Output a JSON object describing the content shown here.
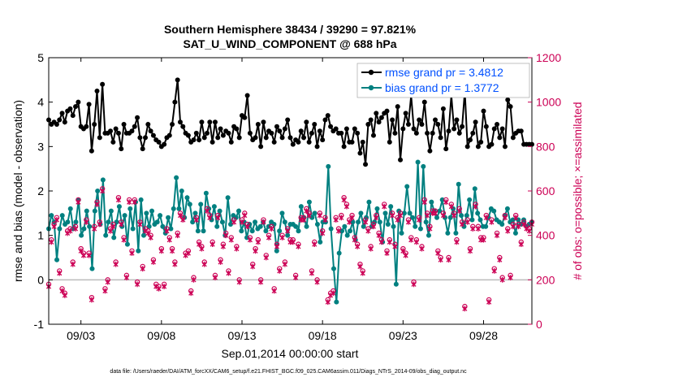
{
  "chart_data": {
    "type": "line",
    "title_line1": "Southern Hemisphere 38434 / 39290 = 97.821%",
    "title_line2": "SAT_U_WIND_COMPONENT @ 688 hPa",
    "ylabel_left": "rmse and bias (model - observation)",
    "ylabel_right": "# of obs: o=possible; ×=assimilated",
    "xlabel": "Sep.01,2014 00:00:00 start",
    "footer": "data file: /Users/raeder/DAI/ATM_forcXX/CAM6_setup/f.e21.FHIST_BGC.f09_025.CAM6assim.011/Diags_NTrS_2014-09/obs_diag_output.nc",
    "x_range": [
      1,
      31
    ],
    "ylim_left": [
      -1,
      5
    ],
    "ylim_right": [
      0,
      1200
    ],
    "x_ticks": [
      {
        "label": "09/03",
        "value": 3
      },
      {
        "label": "09/08",
        "value": 8
      },
      {
        "label": "09/13",
        "value": 13
      },
      {
        "label": "09/18",
        "value": 18
      },
      {
        "label": "09/23",
        "value": 23
      },
      {
        "label": "09/28",
        "value": 28
      }
    ],
    "y_ticks_left": [
      "-1",
      "0",
      "1",
      "2",
      "3",
      "4",
      "5"
    ],
    "y_ticks_right": [
      "0",
      "200",
      "400",
      "600",
      "800",
      "1000",
      "1200"
    ],
    "legend": [
      {
        "label": "rmse grand pr = 3.4812",
        "color": "#000000"
      },
      {
        "label": "bias grand pr = 1.3772",
        "color": "#008080"
      }
    ],
    "colors": {
      "rmse": "#000000",
      "bias": "#008080",
      "obs": "#cc0055",
      "zero": "#bbbbbb",
      "legend_text": "#0050ff"
    },
    "series": [
      {
        "name": "rmse",
        "axis": "left",
        "values": [
          3.6,
          3.5,
          3.55,
          3.5,
          3.6,
          3.75,
          3.55,
          3.8,
          3.85,
          3.7,
          3.9,
          4.0,
          3.45,
          3.4,
          3.45,
          3.95,
          2.9,
          3.5,
          4.25,
          3.2,
          4.4,
          3.3,
          3.3,
          3.35,
          3.1,
          3.4,
          3.3,
          2.95,
          3.5,
          3.3,
          3.3,
          3.35,
          3.45,
          3.65,
          3.2,
          2.95,
          3.2,
          3.5,
          3.35,
          3.25,
          3.15,
          3.1,
          3.0,
          3.05,
          3.2,
          3.25,
          3.5,
          4.0,
          4.5,
          3.55,
          3.45,
          3.3,
          3.25,
          3.1,
          3.15,
          3.3,
          3.15,
          3.55,
          3.2,
          3.3,
          3.55,
          3.1,
          3.55,
          3.2,
          3.4,
          3.25,
          3.35,
          3.3,
          3.1,
          3.45,
          3.4,
          3.2,
          3.7,
          3.65,
          4.15,
          3.3,
          3.15,
          3.2,
          3.5,
          3.0,
          3.55,
          3.2,
          3.35,
          3.3,
          3.1,
          3.45,
          3.35,
          3.2,
          3.4,
          3.6,
          3.2,
          3.05,
          3.15,
          3.1,
          3.35,
          3.2,
          3.55,
          3.1,
          3.3,
          3.5,
          3.0,
          3.35,
          3.15,
          3.6,
          3.7,
          3.45,
          3.35,
          3.4,
          3.3,
          3.3,
          3.0,
          3.4,
          3.1,
          3.1,
          3.4,
          3.3,
          2.85,
          3.1,
          2.6,
          3.5,
          3.6,
          3.25,
          3.75,
          3.55,
          3.65,
          3.75,
          3.8,
          3.1,
          3.6,
          3.3,
          3.9,
          2.7,
          3.4,
          3.75,
          3.5,
          4.15,
          3.4,
          3.3,
          3.6,
          3.5,
          4.0,
          3.3,
          2.9,
          3.3,
          3.6,
          3.5,
          3.2,
          3.85,
          2.95,
          3.35,
          4.15,
          3.4,
          3.6,
          3.3,
          3.45,
          4.25,
          3.0,
          3.15,
          3.3,
          3.55,
          3.0,
          3.1,
          3.8,
          3.45,
          3.0,
          3.05,
          3.4,
          3.5,
          3.2,
          3.4,
          3.0,
          4.05,
          3.9,
          3.2,
          3.3,
          3.35,
          3.35,
          3.05,
          3.05,
          3.05,
          3.05
        ]
      },
      {
        "name": "bias",
        "axis": "left",
        "values": [
          1.15,
          1.45,
          1.3,
          0.45,
          1.15,
          1.45,
          1.25,
          1.3,
          1.6,
          1.15,
          1.3,
          1.8,
          1.0,
          1.15,
          1.55,
          1.2,
          0.25,
          1.55,
          2.0,
          1.25,
          2.25,
          1.0,
          1.3,
          1.55,
          0.95,
          1.3,
          1.65,
          1.2,
          1.45,
          0.8,
          1.6,
          1.15,
          1.75,
          0.65,
          1.8,
          1.0,
          1.5,
          1.2,
          1.55,
          1.25,
          1.3,
          1.45,
          1.2,
          1.05,
          1.4,
          1.15,
          1.6,
          2.3,
          1.6,
          2.0,
          1.4,
          1.85,
          1.7,
          1.3,
          1.5,
          1.1,
          1.7,
          1.1,
          1.95,
          1.6,
          1.35,
          1.65,
          1.2,
          1.55,
          1.3,
          1.0,
          1.85,
          1.25,
          1.45,
          1.4,
          1.55,
          1.1,
          1.3,
          0.95,
          1.25,
          1.1,
          1.3,
          1.15,
          1.2,
          1.3,
          1.1,
          1.2,
          1.3,
          1.25,
          0.65,
          1.1,
          1.5,
          1.3,
          1.0,
          1.25,
          1.25,
          1.2,
          1.1,
          1.65,
          1.4,
          1.2,
          1.75,
          1.4,
          1.5,
          1.25,
          0.85,
          1.3,
          1.3,
          2.55,
          1.15,
          0.25,
          -0.5,
          0.6,
          1.1,
          1.2,
          1.0,
          1.1,
          1.3,
          0.9,
          1.3,
          1.5,
          1.2,
          1.4,
          1.75,
          1.2,
          1.3,
          1.6,
          1.3,
          0.85,
          1.5,
          1.25,
          1.65,
          1.2,
          -0.1,
          1.55,
          1.05,
          1.5,
          2.1,
          1.5,
          1.4,
          1.2,
          2.65,
          1.15,
          2.55,
          1.3,
          1.0,
          1.75,
          1.55,
          1.4,
          1.55,
          1.8,
          1.4,
          1.05,
          1.4,
          1.6,
          1.05,
          2.15,
          1.45,
          1.2,
          1.45,
          1.8,
          1.35,
          2.05,
          1.5,
          1.35,
          1.2,
          1.2,
          1.4,
          1.6,
          1.55,
          1.35,
          1.3,
          1.25,
          1.45,
          1.6,
          1.3,
          1.35,
          1.05,
          1.35,
          1.25,
          1.35,
          1.2,
          1.25,
          1.3
        ]
      },
      {
        "name": "obs possible",
        "axis": "right",
        "values": [
          180,
          380,
          450,
          480,
          240,
          160,
          140,
          420,
          430,
          280,
          440,
          560,
          340,
          320,
          470,
          320,
          120,
          440,
          550,
          460,
          610,
          160,
          200,
          430,
          450,
          280,
          570,
          460,
          390,
          220,
          560,
          330,
          560,
          190,
          460,
          260,
          430,
          420,
          400,
          290,
          180,
          170,
          340,
          180,
          430,
          390,
          340,
          280,
          410,
          500,
          480,
          320,
          330,
          150,
          210,
          480,
          370,
          350,
          280,
          520,
          490,
          370,
          220,
          490,
          290,
          360,
          410,
          240,
          390,
          470,
          350,
          200,
          470,
          500,
          450,
          390,
          270,
          340,
          380,
          200,
          470,
          310,
          400,
          440,
          160,
          360,
          250,
          400,
          280,
          430,
          380,
          380,
          220,
          360,
          480,
          480,
          520,
          500,
          240,
          370,
          200,
          500,
          420,
          480,
          110,
          140,
          150,
          480,
          430,
          490,
          570,
          540,
          470,
          490,
          390,
          360,
          270,
          240,
          470,
          430,
          350,
          450,
          490,
          410,
          380,
          540,
          330,
          380,
          500,
          360,
          480,
          500,
          340,
          320,
          470,
          390,
          190,
          380,
          480,
          350,
          560,
          500,
          440,
          510,
          510,
          330,
          300,
          500,
          560,
          300,
          540,
          500,
          380,
          520,
          460,
          80,
          470,
          340,
          440,
          540,
          440,
          390,
          390,
          490,
          110,
          470,
          250,
          410,
          300,
          210,
          490,
          430,
          220,
          450,
          490,
          450,
          370,
          460,
          440,
          430,
          460
        ]
      },
      {
        "name": "obs assimilated",
        "axis": "right",
        "values": [
          170,
          370,
          440,
          470,
          230,
          150,
          130,
          410,
          420,
          270,
          430,
          550,
          330,
          310,
          460,
          310,
          110,
          430,
          540,
          450,
          600,
          150,
          190,
          420,
          440,
          270,
          560,
          450,
          380,
          210,
          550,
          320,
          550,
          180,
          450,
          250,
          420,
          410,
          390,
          280,
          170,
          160,
          330,
          170,
          420,
          380,
          330,
          270,
          400,
          490,
          470,
          310,
          320,
          140,
          200,
          470,
          360,
          340,
          270,
          510,
          480,
          360,
          210,
          480,
          280,
          350,
          400,
          230,
          380,
          460,
          340,
          190,
          460,
          490,
          440,
          380,
          260,
          330,
          370,
          190,
          460,
          300,
          390,
          430,
          150,
          350,
          240,
          390,
          270,
          420,
          370,
          370,
          210,
          350,
          470,
          470,
          510,
          490,
          230,
          360,
          190,
          490,
          410,
          470,
          100,
          130,
          140,
          470,
          420,
          480,
          560,
          530,
          460,
          480,
          380,
          350,
          260,
          230,
          460,
          420,
          340,
          440,
          480,
          400,
          370,
          530,
          320,
          370,
          490,
          350,
          470,
          490,
          330,
          310,
          460,
          380,
          180,
          370,
          470,
          340,
          550,
          490,
          430,
          500,
          500,
          320,
          290,
          490,
          550,
          290,
          530,
          490,
          370,
          510,
          450,
          70,
          460,
          330,
          430,
          530,
          430,
          380,
          380,
          480,
          100,
          460,
          240,
          400,
          290,
          200,
          480,
          420,
          210,
          440,
          480,
          440,
          360,
          450,
          430,
          420,
          450
        ]
      }
    ]
  }
}
